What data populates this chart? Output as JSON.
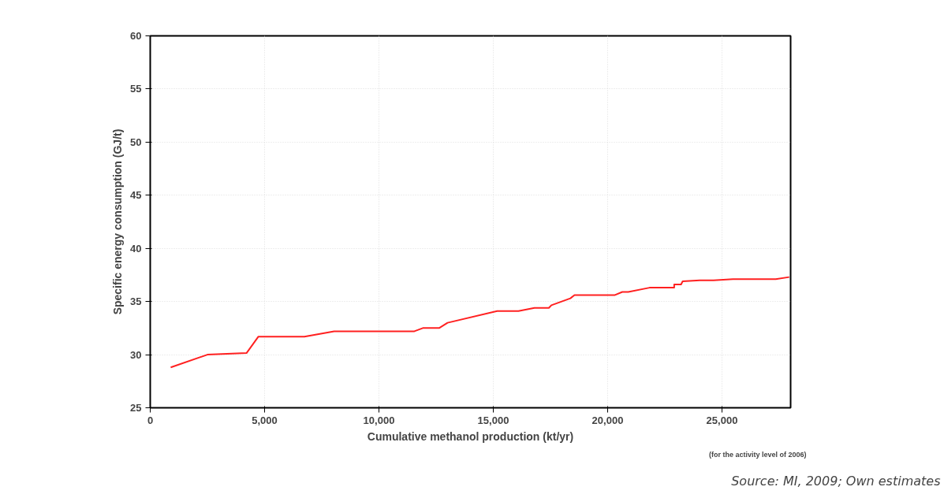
{
  "chart_data": {
    "type": "line",
    "xlabel": "Cumulative methanol production (kt/yr)",
    "ylabel": "Specific energy consumption (GJ/t)",
    "x": [
      894,
      2500,
      4210,
      4730,
      6740,
      8040,
      11550,
      11920,
      12630,
      13000,
      15170,
      16100,
      16800,
      17430,
      17540,
      18370,
      18550,
      20300,
      20640,
      20900,
      21830,
      22910,
      22910,
      23210,
      23280,
      24030,
      24630,
      25480,
      27350,
      27940
    ],
    "series": [
      {
        "color": "#ff2020",
        "values": [
          28.8,
          30.0,
          30.15,
          31.7,
          31.7,
          32.2,
          32.2,
          32.5,
          32.5,
          33.0,
          34.1,
          34.1,
          34.4,
          34.4,
          34.65,
          35.3,
          35.6,
          35.6,
          35.9,
          35.9,
          36.3,
          36.3,
          36.6,
          36.6,
          36.9,
          37.0,
          37.0,
          37.1,
          37.1,
          37.3
        ]
      }
    ],
    "xlim": [
      0,
      28000
    ],
    "xticks": [
      0,
      {
        "value": 5000,
        "label": "5,000"
      },
      {
        "value": 10000,
        "label": "10,000"
      },
      {
        "value": 15000,
        "label": "15,000"
      },
      {
        "value": 20000,
        "label": "20,000"
      },
      {
        "value": 25000,
        "label": "25,000"
      }
    ],
    "ylim": [
      25,
      60
    ],
    "yticks": [
      25,
      30,
      35,
      40,
      45,
      50,
      55,
      60
    ],
    "grid": true,
    "marker": "none",
    "line_style": "solid",
    "annotations": [
      "(for the activity level of 2006)",
      "Source: MI, 2009; Own estimates"
    ]
  }
}
